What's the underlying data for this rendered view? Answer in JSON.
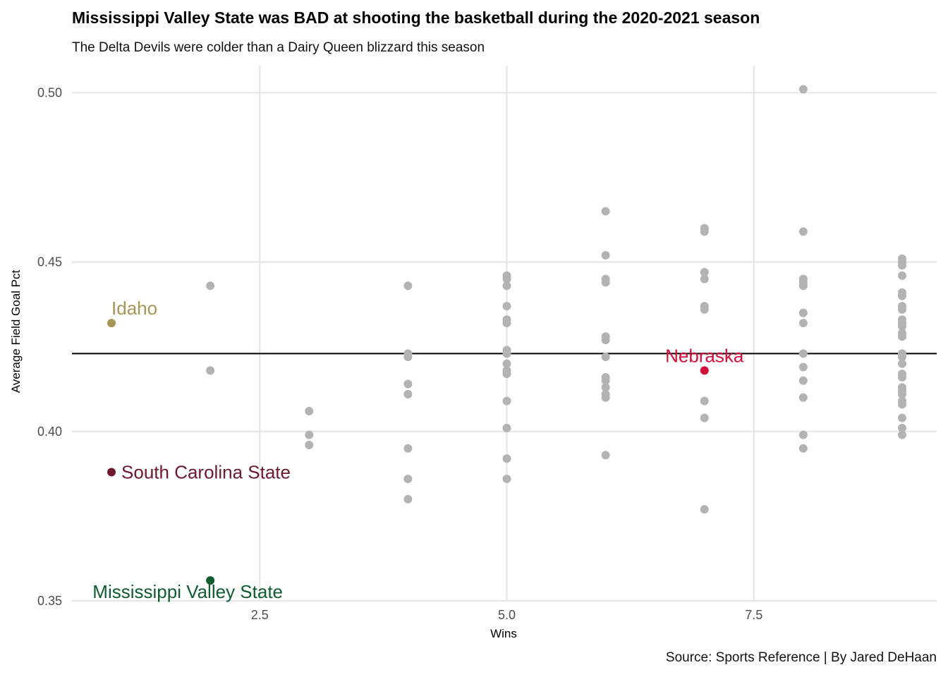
{
  "chart_data": {
    "type": "scatter",
    "title": "Mississippi Valley State was BAD at shooting the basketball during the 2020-2021 season",
    "subtitle": "The Delta Devils were colder than a Dairy Queen blizzard this season",
    "caption": "Source: Sports Reference | By Jared DeHaan",
    "xlabel": "Wins",
    "ylabel": "Average Field Goal Pct",
    "xlim": [
      0.6,
      9.35
    ],
    "ylim": [
      0.35,
      0.508
    ],
    "xticks": [
      2.5,
      5.0,
      7.5
    ],
    "xtick_labels": [
      "2.5",
      "5.0",
      "7.5"
    ],
    "yticks": [
      0.35,
      0.4,
      0.45,
      0.5
    ],
    "ytick_labels": [
      "0.35",
      "0.40",
      "0.45",
      "0.50"
    ],
    "grid": true,
    "reference_line": {
      "y": 0.423,
      "color": "#000000"
    },
    "colors": {
      "other": "#b3b3b3",
      "grid": "#e6e6e6"
    },
    "points": [
      [
        2,
        0.443
      ],
      [
        2,
        0.418
      ],
      [
        3,
        0.406
      ],
      [
        3,
        0.399
      ],
      [
        3,
        0.396
      ],
      [
        4,
        0.443
      ],
      [
        4,
        0.423
      ],
      [
        4,
        0.422
      ],
      [
        4,
        0.414
      ],
      [
        4,
        0.411
      ],
      [
        4,
        0.395
      ],
      [
        4,
        0.386
      ],
      [
        4,
        0.38
      ],
      [
        5,
        0.446
      ],
      [
        5,
        0.445
      ],
      [
        5,
        0.443
      ],
      [
        5,
        0.437
      ],
      [
        5,
        0.433
      ],
      [
        5,
        0.432
      ],
      [
        5,
        0.424
      ],
      [
        5,
        0.423
      ],
      [
        5,
        0.42
      ],
      [
        5,
        0.418
      ],
      [
        5,
        0.417
      ],
      [
        5,
        0.409
      ],
      [
        5,
        0.401
      ],
      [
        5,
        0.392
      ],
      [
        5,
        0.386
      ],
      [
        6,
        0.465
      ],
      [
        6,
        0.452
      ],
      [
        6,
        0.445
      ],
      [
        6,
        0.444
      ],
      [
        6,
        0.428
      ],
      [
        6,
        0.427
      ],
      [
        6,
        0.422
      ],
      [
        6,
        0.416
      ],
      [
        6,
        0.415
      ],
      [
        6,
        0.413
      ],
      [
        6,
        0.411
      ],
      [
        6,
        0.41
      ],
      [
        6,
        0.393
      ],
      [
        7,
        0.46
      ],
      [
        7,
        0.459
      ],
      [
        7,
        0.447
      ],
      [
        7,
        0.445
      ],
      [
        7,
        0.437
      ],
      [
        7,
        0.436
      ],
      [
        7,
        0.409
      ],
      [
        7,
        0.404
      ],
      [
        7,
        0.377
      ],
      [
        8,
        0.501
      ],
      [
        8,
        0.459
      ],
      [
        8,
        0.445
      ],
      [
        8,
        0.444
      ],
      [
        8,
        0.443
      ],
      [
        8,
        0.435
      ],
      [
        8,
        0.432
      ],
      [
        8,
        0.423
      ],
      [
        8,
        0.419
      ],
      [
        8,
        0.415
      ],
      [
        8,
        0.41
      ],
      [
        8,
        0.399
      ],
      [
        8,
        0.395
      ],
      [
        9,
        0.451
      ],
      [
        9,
        0.45
      ],
      [
        9,
        0.449
      ],
      [
        9,
        0.446
      ],
      [
        9,
        0.441
      ],
      [
        9,
        0.44
      ],
      [
        9,
        0.437
      ],
      [
        9,
        0.436
      ],
      [
        9,
        0.433
      ],
      [
        9,
        0.432
      ],
      [
        9,
        0.431
      ],
      [
        9,
        0.429
      ],
      [
        9,
        0.428
      ],
      [
        9,
        0.423
      ],
      [
        9,
        0.422
      ],
      [
        9,
        0.42
      ],
      [
        9,
        0.417
      ],
      [
        9,
        0.416
      ],
      [
        9,
        0.413
      ],
      [
        9,
        0.412
      ],
      [
        9,
        0.411
      ],
      [
        9,
        0.409
      ],
      [
        9,
        0.408
      ],
      [
        9,
        0.404
      ],
      [
        9,
        0.401
      ],
      [
        9,
        0.399
      ]
    ],
    "highlights": [
      {
        "name": "Idaho",
        "x": 1,
        "y": 0.432,
        "color": "#a89558",
        "label_pos": "above"
      },
      {
        "name": "South Carolina State",
        "x": 1,
        "y": 0.388,
        "color": "#6e1a2c",
        "label_pos": "right"
      },
      {
        "name": "Mississippi Valley State",
        "x": 2,
        "y": 0.356,
        "color": "#0e5c2f",
        "label_pos": "below"
      },
      {
        "name": "Nebraska",
        "x": 7,
        "y": 0.418,
        "color": "#d0103a",
        "label_pos": "above"
      }
    ]
  }
}
